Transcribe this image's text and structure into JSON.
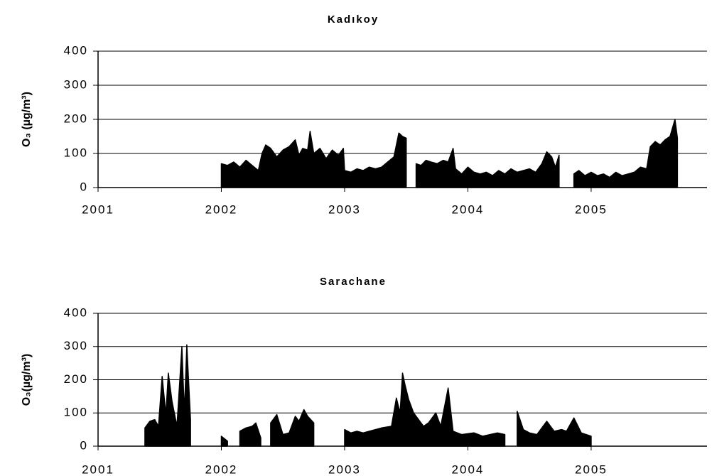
{
  "chart_data": [
    {
      "type": "area",
      "title": "Kadıkoy",
      "ylabel": "O₃ (µg/m³)",
      "color": "#000000",
      "grid": true,
      "xlim": [
        2001,
        2005.94
      ],
      "xticks": [
        2001,
        2002,
        2003,
        2004,
        2005
      ],
      "ylim": [
        0,
        400
      ],
      "yticks": [
        0,
        100,
        200,
        300,
        400
      ],
      "x": [
        2002.0,
        2002.05,
        2002.1,
        2002.15,
        2002.2,
        2002.25,
        2002.3,
        2002.33,
        2002.36,
        2002.4,
        2002.45,
        2002.5,
        2002.55,
        2002.6,
        2002.63,
        2002.66,
        2002.7,
        2002.72,
        2002.75,
        2002.8,
        2002.85,
        2002.9,
        2002.95,
        2002.99,
        2003.0,
        2003.05,
        2003.1,
        2003.15,
        2003.2,
        2003.25,
        2003.3,
        2003.35,
        2003.4,
        2003.44,
        2003.47,
        2003.5,
        2003.54,
        2003.58,
        2003.62,
        2003.66,
        2003.7,
        2003.75,
        2003.8,
        2003.84,
        2003.88,
        2003.9,
        2003.95,
        2004.0,
        2004.05,
        2004.1,
        2004.15,
        2004.2,
        2004.25,
        2004.3,
        2004.35,
        2004.4,
        2004.45,
        2004.5,
        2004.55,
        2004.6,
        2004.64,
        2004.68,
        2004.71,
        2004.74,
        2004.8,
        2004.86,
        2004.9,
        2004.95,
        2005.0,
        2005.05,
        2005.1,
        2005.15,
        2005.2,
        2005.25,
        2005.3,
        2005.35,
        2005.4,
        2005.45,
        2005.48,
        2005.52,
        2005.56,
        2005.6,
        2005.64,
        2005.68,
        2005.7
      ],
      "values": [
        70,
        65,
        75,
        60,
        80,
        65,
        50,
        100,
        125,
        115,
        90,
        110,
        120,
        140,
        95,
        115,
        110,
        165,
        100,
        115,
        85,
        110,
        95,
        115,
        50,
        45,
        55,
        50,
        60,
        55,
        60,
        75,
        90,
        160,
        150,
        145,
        null,
        70,
        65,
        80,
        75,
        70,
        80,
        75,
        115,
        55,
        40,
        60,
        45,
        40,
        45,
        35,
        50,
        40,
        55,
        45,
        50,
        55,
        45,
        70,
        105,
        90,
        60,
        95,
        null,
        40,
        50,
        35,
        45,
        35,
        40,
        30,
        45,
        35,
        40,
        45,
        60,
        55,
        120,
        135,
        125,
        140,
        150,
        200,
        145
      ]
    },
    {
      "type": "area",
      "title": "Sarachane",
      "ylabel": "O₃(µg/m³)",
      "color": "#000000",
      "grid": true,
      "xlim": [
        2001,
        2005.94
      ],
      "xticks": [
        2001,
        2002,
        2003,
        2004,
        2005
      ],
      "ylim": [
        0,
        400
      ],
      "yticks": [
        0,
        100,
        200,
        300,
        400
      ],
      "x": [
        2001.38,
        2001.42,
        2001.46,
        2001.49,
        2001.52,
        2001.55,
        2001.57,
        2001.6,
        2001.64,
        2001.68,
        2001.7,
        2001.72,
        2001.75,
        2001.85,
        2002.0,
        2002.05,
        2002.1,
        2002.15,
        2002.2,
        2002.25,
        2002.28,
        2002.32,
        2002.36,
        2002.4,
        2002.45,
        2002.5,
        2002.55,
        2002.6,
        2002.63,
        2002.67,
        2002.7,
        2002.75,
        2002.8,
        2003.0,
        2003.05,
        2003.1,
        2003.15,
        2003.2,
        2003.3,
        2003.38,
        2003.42,
        2003.45,
        2003.47,
        2003.49,
        2003.52,
        2003.56,
        2003.6,
        2003.64,
        2003.68,
        2003.74,
        2003.78,
        2003.84,
        2003.88,
        2003.95,
        2004.05,
        2004.12,
        2004.18,
        2004.24,
        2004.3,
        2004.36,
        2004.4,
        2004.45,
        2004.5,
        2004.56,
        2004.64,
        2004.7,
        2004.76,
        2004.8,
        2004.86,
        2004.92,
        2005.0
      ],
      "values": [
        55,
        75,
        80,
        60,
        210,
        95,
        220,
        135,
        60,
        300,
        100,
        305,
        80,
        null,
        30,
        15,
        null,
        45,
        55,
        60,
        70,
        25,
        null,
        70,
        95,
        35,
        40,
        90,
        75,
        110,
        90,
        70,
        null,
        50,
        40,
        45,
        40,
        45,
        55,
        60,
        145,
        100,
        220,
        185,
        140,
        100,
        80,
        60,
        70,
        100,
        60,
        175,
        45,
        35,
        40,
        30,
        35,
        40,
        35,
        null,
        105,
        50,
        40,
        35,
        75,
        45,
        50,
        45,
        85,
        40,
        30
      ]
    }
  ]
}
